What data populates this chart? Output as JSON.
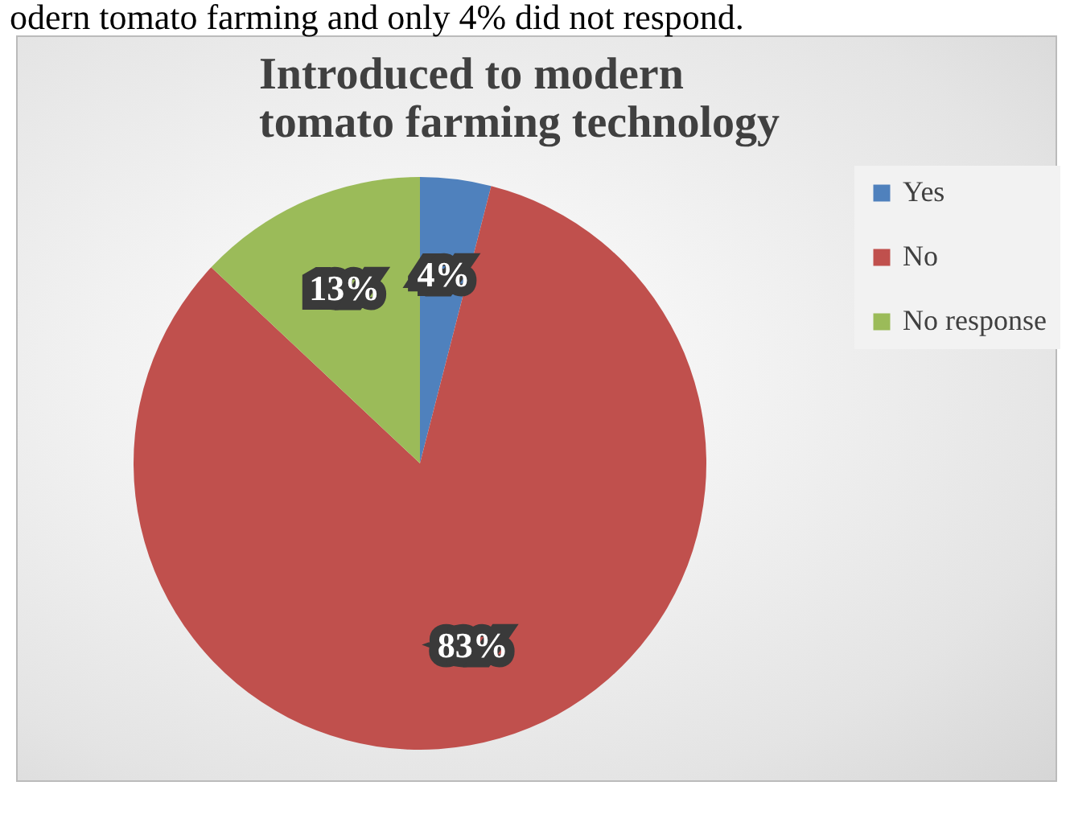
{
  "chart_data": {
    "type": "pie",
    "title": "Introduced to modern tomato farming technology",
    "annotations": [
      "odern tomato farming and only 4% did not respond."
    ],
    "categories": [
      "Yes",
      "No",
      "No response"
    ],
    "values": [
      4,
      83,
      13
    ],
    "colors": [
      "#4f81bd",
      "#c0504d",
      "#9bbb59"
    ],
    "value_labels": [
      "4%",
      "83%",
      "13%"
    ],
    "legend": "right"
  }
}
